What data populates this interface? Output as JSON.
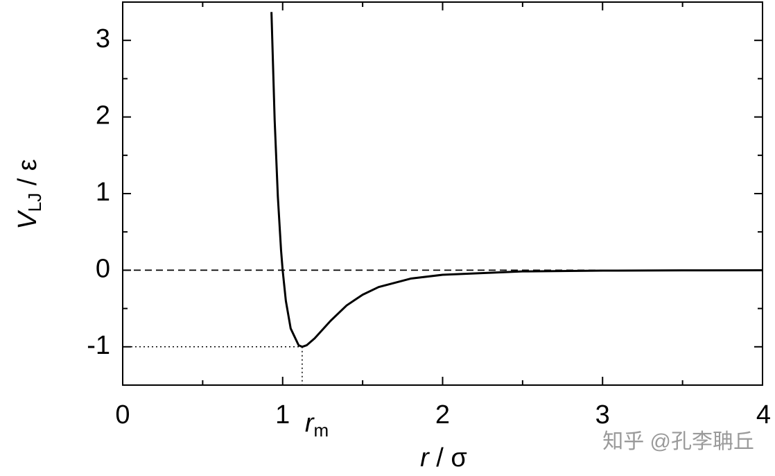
{
  "chart_data": {
    "type": "line",
    "xlabel": [
      "r",
      " / σ"
    ],
    "ylabel": [
      "V",
      "LJ",
      " / ε"
    ],
    "x": [
      0.93,
      0.95,
      0.97,
      0.99,
      1.0,
      1.02,
      1.05,
      1.1,
      1.122,
      1.15,
      1.2,
      1.3,
      1.4,
      1.5,
      1.6,
      1.8,
      2.0,
      2.5,
      3.0,
      3.5,
      4.0
    ],
    "series": [
      {
        "color": "#000000",
        "values": [
          3.37,
          1.96,
          0.96,
          0.26,
          0,
          -0.4,
          -0.76,
          -0.98,
          -1,
          -0.98,
          -0.89,
          -0.66,
          -0.46,
          -0.32,
          -0.22,
          -0.11,
          -0.06,
          -0.016,
          -0.006,
          -0.002,
          -0.001
        ]
      }
    ],
    "xlim": [
      0,
      4
    ],
    "ylim": [
      -1.5,
      3.5
    ],
    "xticks": [
      0,
      1,
      2,
      3,
      4
    ],
    "yticks": [
      -1,
      0,
      1,
      2,
      3
    ],
    "xminor": [
      0.5,
      1.5,
      2.5,
      3.5
    ],
    "yminor": [
      -0.5,
      0.5,
      1.5,
      2.5
    ],
    "reference_line": {
      "y": 0,
      "style": "dashed"
    },
    "minimum": {
      "x": 1.122,
      "y": -1,
      "label": [
        "r",
        "m"
      ]
    },
    "watermark": "知乎 @孔李聃丘"
  }
}
